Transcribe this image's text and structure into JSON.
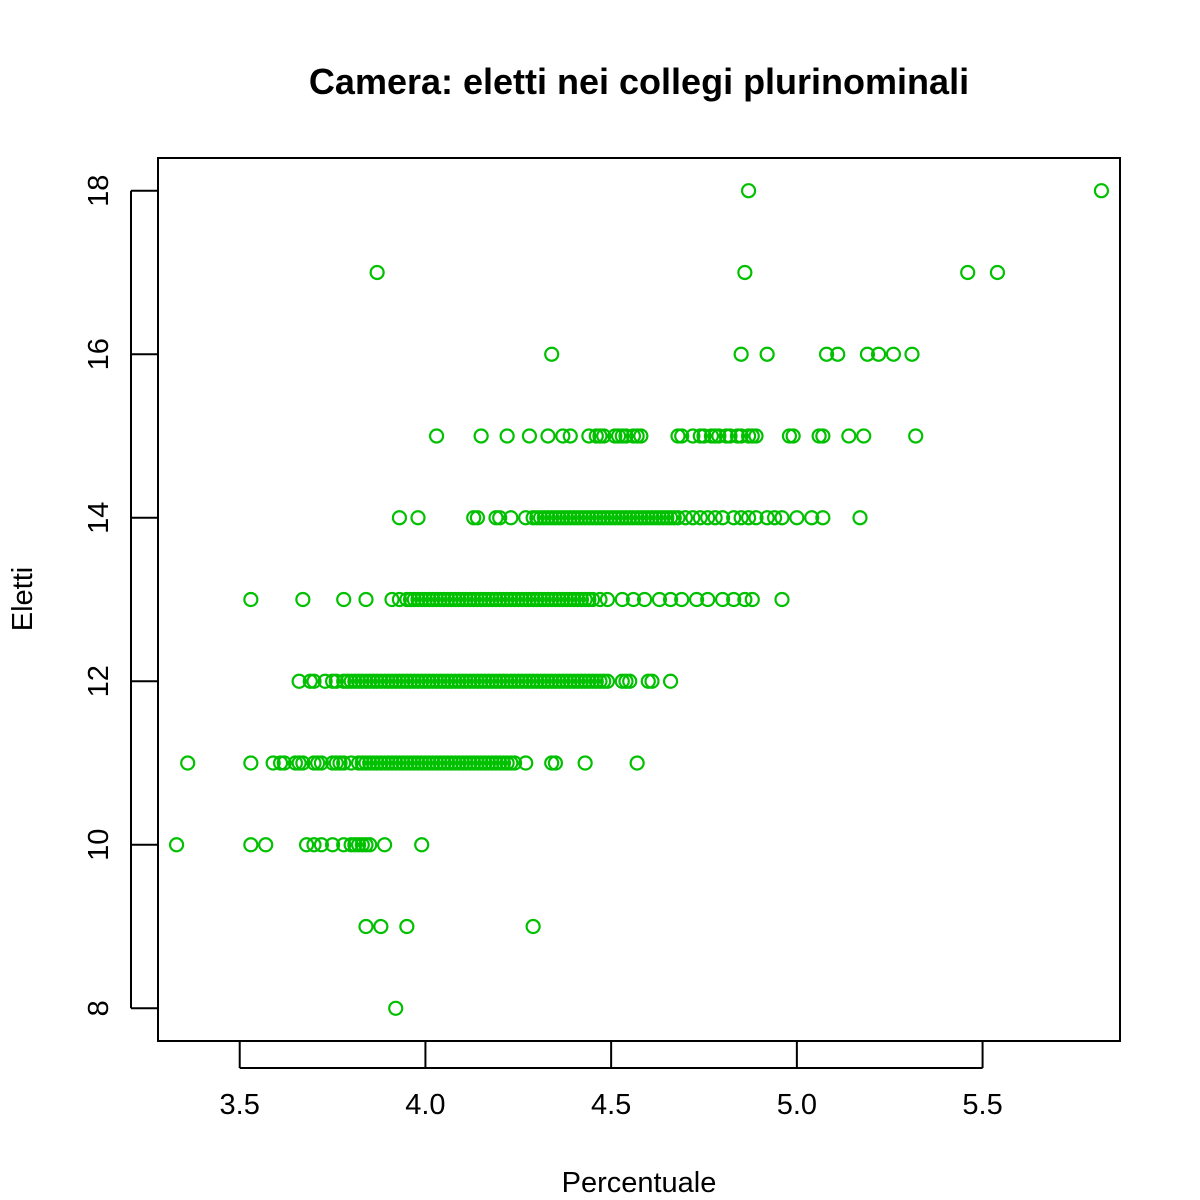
{
  "chart_data": {
    "type": "scatter",
    "title": "Camera: eletti nei collegi plurinominali",
    "xlabel": "Percentuale",
    "ylabel": "Eletti",
    "xlim": [
      3.28,
      5.87
    ],
    "ylim": [
      7.6,
      18.4
    ],
    "x_ticks": [
      3.5,
      4.0,
      4.5,
      5.0,
      5.5
    ],
    "x_tick_labels": [
      "3.5",
      "4.0",
      "4.5",
      "5.0",
      "5.5"
    ],
    "y_ticks": [
      8,
      10,
      12,
      14,
      16,
      18
    ],
    "y_tick_labels": [
      "8",
      "10",
      "12",
      "14",
      "16",
      "18"
    ],
    "marker": "open-circle",
    "color": "#00c000",
    "grid": false,
    "legend": "none",
    "points": [
      {
        "x": 3.92,
        "y": 8
      },
      {
        "x": 3.84,
        "y": 9
      },
      {
        "x": 3.88,
        "y": 9
      },
      {
        "x": 3.95,
        "y": 9
      },
      {
        "x": 4.29,
        "y": 9
      },
      {
        "x": 3.33,
        "y": 10
      },
      {
        "x": 3.53,
        "y": 10
      },
      {
        "x": 3.57,
        "y": 10
      },
      {
        "x": 3.68,
        "y": 10
      },
      {
        "x": 3.7,
        "y": 10
      },
      {
        "x": 3.72,
        "y": 10
      },
      {
        "x": 3.75,
        "y": 10
      },
      {
        "x": 3.78,
        "y": 10
      },
      {
        "x": 3.8,
        "y": 10
      },
      {
        "x": 3.81,
        "y": 10
      },
      {
        "x": 3.82,
        "y": 10
      },
      {
        "x": 3.83,
        "y": 10
      },
      {
        "x": 3.84,
        "y": 10
      },
      {
        "x": 3.85,
        "y": 10
      },
      {
        "x": 3.89,
        "y": 10
      },
      {
        "x": 3.99,
        "y": 10
      },
      {
        "x": 3.36,
        "y": 11
      },
      {
        "x": 3.53,
        "y": 11
      },
      {
        "x": 3.59,
        "y": 11
      },
      {
        "x": 3.61,
        "y": 11
      },
      {
        "x": 3.62,
        "y": 11
      },
      {
        "x": 3.65,
        "y": 11
      },
      {
        "x": 3.66,
        "y": 11
      },
      {
        "x": 3.67,
        "y": 11
      },
      {
        "x": 3.7,
        "y": 11
      },
      {
        "x": 3.71,
        "y": 11
      },
      {
        "x": 3.72,
        "y": 11
      },
      {
        "x": 3.75,
        "y": 11
      },
      {
        "x": 3.76,
        "y": 11
      },
      {
        "x": 3.77,
        "y": 11
      },
      {
        "x": 3.78,
        "y": 11
      },
      {
        "x": 3.8,
        "y": 11
      },
      {
        "x": 3.82,
        "y": 11
      },
      {
        "x": 3.83,
        "y": 11
      },
      {
        "x": 3.84,
        "y": 11
      },
      {
        "x": 3.85,
        "y": 11
      },
      {
        "x": 3.86,
        "y": 11
      },
      {
        "x": 3.87,
        "y": 11
      },
      {
        "x": 3.88,
        "y": 11
      },
      {
        "x": 3.89,
        "y": 11
      },
      {
        "x": 3.9,
        "y": 11
      },
      {
        "x": 3.91,
        "y": 11
      },
      {
        "x": 3.92,
        "y": 11
      },
      {
        "x": 3.93,
        "y": 11
      },
      {
        "x": 3.94,
        "y": 11
      },
      {
        "x": 3.95,
        "y": 11
      },
      {
        "x": 3.96,
        "y": 11
      },
      {
        "x": 3.97,
        "y": 11
      },
      {
        "x": 3.98,
        "y": 11
      },
      {
        "x": 3.99,
        "y": 11
      },
      {
        "x": 4.0,
        "y": 11
      },
      {
        "x": 4.01,
        "y": 11
      },
      {
        "x": 4.02,
        "y": 11
      },
      {
        "x": 4.03,
        "y": 11
      },
      {
        "x": 4.04,
        "y": 11
      },
      {
        "x": 4.05,
        "y": 11
      },
      {
        "x": 4.06,
        "y": 11
      },
      {
        "x": 4.07,
        "y": 11
      },
      {
        "x": 4.08,
        "y": 11
      },
      {
        "x": 4.09,
        "y": 11
      },
      {
        "x": 4.1,
        "y": 11
      },
      {
        "x": 4.11,
        "y": 11
      },
      {
        "x": 4.12,
        "y": 11
      },
      {
        "x": 4.13,
        "y": 11
      },
      {
        "x": 4.14,
        "y": 11
      },
      {
        "x": 4.15,
        "y": 11
      },
      {
        "x": 4.16,
        "y": 11
      },
      {
        "x": 4.17,
        "y": 11
      },
      {
        "x": 4.18,
        "y": 11
      },
      {
        "x": 4.19,
        "y": 11
      },
      {
        "x": 4.2,
        "y": 11
      },
      {
        "x": 4.21,
        "y": 11
      },
      {
        "x": 4.22,
        "y": 11
      },
      {
        "x": 4.23,
        "y": 11
      },
      {
        "x": 4.24,
        "y": 11
      },
      {
        "x": 4.27,
        "y": 11
      },
      {
        "x": 4.34,
        "y": 11
      },
      {
        "x": 4.35,
        "y": 11
      },
      {
        "x": 4.43,
        "y": 11
      },
      {
        "x": 4.57,
        "y": 11
      },
      {
        "x": 3.66,
        "y": 12
      },
      {
        "x": 3.69,
        "y": 12
      },
      {
        "x": 3.7,
        "y": 12
      },
      {
        "x": 3.73,
        "y": 12
      },
      {
        "x": 3.75,
        "y": 12
      },
      {
        "x": 3.76,
        "y": 12
      },
      {
        "x": 3.78,
        "y": 12
      },
      {
        "x": 3.79,
        "y": 12
      },
      {
        "x": 3.8,
        "y": 12
      },
      {
        "x": 3.81,
        "y": 12
      },
      {
        "x": 3.82,
        "y": 12
      },
      {
        "x": 3.83,
        "y": 12
      },
      {
        "x": 3.84,
        "y": 12
      },
      {
        "x": 3.85,
        "y": 12
      },
      {
        "x": 3.86,
        "y": 12
      },
      {
        "x": 3.87,
        "y": 12
      },
      {
        "x": 3.88,
        "y": 12
      },
      {
        "x": 3.89,
        "y": 12
      },
      {
        "x": 3.9,
        "y": 12
      },
      {
        "x": 3.91,
        "y": 12
      },
      {
        "x": 3.92,
        "y": 12
      },
      {
        "x": 3.93,
        "y": 12
      },
      {
        "x": 3.94,
        "y": 12
      },
      {
        "x": 3.95,
        "y": 12
      },
      {
        "x": 3.96,
        "y": 12
      },
      {
        "x": 3.97,
        "y": 12
      },
      {
        "x": 3.98,
        "y": 12
      },
      {
        "x": 3.99,
        "y": 12
      },
      {
        "x": 4.0,
        "y": 12
      },
      {
        "x": 4.01,
        "y": 12
      },
      {
        "x": 4.02,
        "y": 12
      },
      {
        "x": 4.03,
        "y": 12
      },
      {
        "x": 4.04,
        "y": 12
      },
      {
        "x": 4.05,
        "y": 12
      },
      {
        "x": 4.06,
        "y": 12
      },
      {
        "x": 4.07,
        "y": 12
      },
      {
        "x": 4.08,
        "y": 12
      },
      {
        "x": 4.09,
        "y": 12
      },
      {
        "x": 4.1,
        "y": 12
      },
      {
        "x": 4.11,
        "y": 12
      },
      {
        "x": 4.12,
        "y": 12
      },
      {
        "x": 4.13,
        "y": 12
      },
      {
        "x": 4.14,
        "y": 12
      },
      {
        "x": 4.15,
        "y": 12
      },
      {
        "x": 4.16,
        "y": 12
      },
      {
        "x": 4.17,
        "y": 12
      },
      {
        "x": 4.18,
        "y": 12
      },
      {
        "x": 4.19,
        "y": 12
      },
      {
        "x": 4.2,
        "y": 12
      },
      {
        "x": 4.21,
        "y": 12
      },
      {
        "x": 4.22,
        "y": 12
      },
      {
        "x": 4.23,
        "y": 12
      },
      {
        "x": 4.24,
        "y": 12
      },
      {
        "x": 4.25,
        "y": 12
      },
      {
        "x": 4.26,
        "y": 12
      },
      {
        "x": 4.27,
        "y": 12
      },
      {
        "x": 4.28,
        "y": 12
      },
      {
        "x": 4.29,
        "y": 12
      },
      {
        "x": 4.3,
        "y": 12
      },
      {
        "x": 4.31,
        "y": 12
      },
      {
        "x": 4.32,
        "y": 12
      },
      {
        "x": 4.33,
        "y": 12
      },
      {
        "x": 4.34,
        "y": 12
      },
      {
        "x": 4.35,
        "y": 12
      },
      {
        "x": 4.36,
        "y": 12
      },
      {
        "x": 4.37,
        "y": 12
      },
      {
        "x": 4.38,
        "y": 12
      },
      {
        "x": 4.39,
        "y": 12
      },
      {
        "x": 4.4,
        "y": 12
      },
      {
        "x": 4.41,
        "y": 12
      },
      {
        "x": 4.42,
        "y": 12
      },
      {
        "x": 4.43,
        "y": 12
      },
      {
        "x": 4.44,
        "y": 12
      },
      {
        "x": 4.45,
        "y": 12
      },
      {
        "x": 4.46,
        "y": 12
      },
      {
        "x": 4.47,
        "y": 12
      },
      {
        "x": 4.48,
        "y": 12
      },
      {
        "x": 4.49,
        "y": 12
      },
      {
        "x": 4.53,
        "y": 12
      },
      {
        "x": 4.54,
        "y": 12
      },
      {
        "x": 4.55,
        "y": 12
      },
      {
        "x": 4.6,
        "y": 12
      },
      {
        "x": 4.61,
        "y": 12
      },
      {
        "x": 4.66,
        "y": 12
      },
      {
        "x": 3.53,
        "y": 13
      },
      {
        "x": 3.67,
        "y": 13
      },
      {
        "x": 3.78,
        "y": 13
      },
      {
        "x": 3.84,
        "y": 13
      },
      {
        "x": 3.91,
        "y": 13
      },
      {
        "x": 3.93,
        "y": 13
      },
      {
        "x": 3.95,
        "y": 13
      },
      {
        "x": 3.96,
        "y": 13
      },
      {
        "x": 3.97,
        "y": 13
      },
      {
        "x": 3.98,
        "y": 13
      },
      {
        "x": 3.99,
        "y": 13
      },
      {
        "x": 4.0,
        "y": 13
      },
      {
        "x": 4.01,
        "y": 13
      },
      {
        "x": 4.02,
        "y": 13
      },
      {
        "x": 4.03,
        "y": 13
      },
      {
        "x": 4.04,
        "y": 13
      },
      {
        "x": 4.05,
        "y": 13
      },
      {
        "x": 4.06,
        "y": 13
      },
      {
        "x": 4.07,
        "y": 13
      },
      {
        "x": 4.08,
        "y": 13
      },
      {
        "x": 4.09,
        "y": 13
      },
      {
        "x": 4.1,
        "y": 13
      },
      {
        "x": 4.11,
        "y": 13
      },
      {
        "x": 4.12,
        "y": 13
      },
      {
        "x": 4.13,
        "y": 13
      },
      {
        "x": 4.14,
        "y": 13
      },
      {
        "x": 4.15,
        "y": 13
      },
      {
        "x": 4.16,
        "y": 13
      },
      {
        "x": 4.17,
        "y": 13
      },
      {
        "x": 4.18,
        "y": 13
      },
      {
        "x": 4.19,
        "y": 13
      },
      {
        "x": 4.2,
        "y": 13
      },
      {
        "x": 4.21,
        "y": 13
      },
      {
        "x": 4.22,
        "y": 13
      },
      {
        "x": 4.23,
        "y": 13
      },
      {
        "x": 4.24,
        "y": 13
      },
      {
        "x": 4.25,
        "y": 13
      },
      {
        "x": 4.26,
        "y": 13
      },
      {
        "x": 4.27,
        "y": 13
      },
      {
        "x": 4.28,
        "y": 13
      },
      {
        "x": 4.29,
        "y": 13
      },
      {
        "x": 4.3,
        "y": 13
      },
      {
        "x": 4.31,
        "y": 13
      },
      {
        "x": 4.32,
        "y": 13
      },
      {
        "x": 4.33,
        "y": 13
      },
      {
        "x": 4.34,
        "y": 13
      },
      {
        "x": 4.35,
        "y": 13
      },
      {
        "x": 4.36,
        "y": 13
      },
      {
        "x": 4.37,
        "y": 13
      },
      {
        "x": 4.38,
        "y": 13
      },
      {
        "x": 4.39,
        "y": 13
      },
      {
        "x": 4.4,
        "y": 13
      },
      {
        "x": 4.41,
        "y": 13
      },
      {
        "x": 4.42,
        "y": 13
      },
      {
        "x": 4.43,
        "y": 13
      },
      {
        "x": 4.44,
        "y": 13
      },
      {
        "x": 4.45,
        "y": 13
      },
      {
        "x": 4.47,
        "y": 13
      },
      {
        "x": 4.49,
        "y": 13
      },
      {
        "x": 4.53,
        "y": 13
      },
      {
        "x": 4.56,
        "y": 13
      },
      {
        "x": 4.59,
        "y": 13
      },
      {
        "x": 4.63,
        "y": 13
      },
      {
        "x": 4.66,
        "y": 13
      },
      {
        "x": 4.69,
        "y": 13
      },
      {
        "x": 4.73,
        "y": 13
      },
      {
        "x": 4.76,
        "y": 13
      },
      {
        "x": 4.8,
        "y": 13
      },
      {
        "x": 4.83,
        "y": 13
      },
      {
        "x": 4.86,
        "y": 13
      },
      {
        "x": 4.88,
        "y": 13
      },
      {
        "x": 4.96,
        "y": 13
      },
      {
        "x": 3.93,
        "y": 14
      },
      {
        "x": 3.98,
        "y": 14
      },
      {
        "x": 4.13,
        "y": 14
      },
      {
        "x": 4.14,
        "y": 14
      },
      {
        "x": 4.19,
        "y": 14
      },
      {
        "x": 4.2,
        "y": 14
      },
      {
        "x": 4.23,
        "y": 14
      },
      {
        "x": 4.27,
        "y": 14
      },
      {
        "x": 4.29,
        "y": 14
      },
      {
        "x": 4.3,
        "y": 14
      },
      {
        "x": 4.31,
        "y": 14
      },
      {
        "x": 4.32,
        "y": 14
      },
      {
        "x": 4.33,
        "y": 14
      },
      {
        "x": 4.34,
        "y": 14
      },
      {
        "x": 4.35,
        "y": 14
      },
      {
        "x": 4.36,
        "y": 14
      },
      {
        "x": 4.37,
        "y": 14
      },
      {
        "x": 4.38,
        "y": 14
      },
      {
        "x": 4.39,
        "y": 14
      },
      {
        "x": 4.4,
        "y": 14
      },
      {
        "x": 4.41,
        "y": 14
      },
      {
        "x": 4.42,
        "y": 14
      },
      {
        "x": 4.43,
        "y": 14
      },
      {
        "x": 4.44,
        "y": 14
      },
      {
        "x": 4.45,
        "y": 14
      },
      {
        "x": 4.46,
        "y": 14
      },
      {
        "x": 4.47,
        "y": 14
      },
      {
        "x": 4.48,
        "y": 14
      },
      {
        "x": 4.49,
        "y": 14
      },
      {
        "x": 4.5,
        "y": 14
      },
      {
        "x": 4.51,
        "y": 14
      },
      {
        "x": 4.52,
        "y": 14
      },
      {
        "x": 4.53,
        "y": 14
      },
      {
        "x": 4.54,
        "y": 14
      },
      {
        "x": 4.55,
        "y": 14
      },
      {
        "x": 4.56,
        "y": 14
      },
      {
        "x": 4.57,
        "y": 14
      },
      {
        "x": 4.58,
        "y": 14
      },
      {
        "x": 4.59,
        "y": 14
      },
      {
        "x": 4.6,
        "y": 14
      },
      {
        "x": 4.61,
        "y": 14
      },
      {
        "x": 4.62,
        "y": 14
      },
      {
        "x": 4.63,
        "y": 14
      },
      {
        "x": 4.64,
        "y": 14
      },
      {
        "x": 4.65,
        "y": 14
      },
      {
        "x": 4.66,
        "y": 14
      },
      {
        "x": 4.67,
        "y": 14
      },
      {
        "x": 4.68,
        "y": 14
      },
      {
        "x": 4.7,
        "y": 14
      },
      {
        "x": 4.72,
        "y": 14
      },
      {
        "x": 4.74,
        "y": 14
      },
      {
        "x": 4.76,
        "y": 14
      },
      {
        "x": 4.78,
        "y": 14
      },
      {
        "x": 4.8,
        "y": 14
      },
      {
        "x": 4.83,
        "y": 14
      },
      {
        "x": 4.85,
        "y": 14
      },
      {
        "x": 4.87,
        "y": 14
      },
      {
        "x": 4.89,
        "y": 14
      },
      {
        "x": 4.92,
        "y": 14
      },
      {
        "x": 4.94,
        "y": 14
      },
      {
        "x": 4.96,
        "y": 14
      },
      {
        "x": 5.0,
        "y": 14
      },
      {
        "x": 5.04,
        "y": 14
      },
      {
        "x": 5.07,
        "y": 14
      },
      {
        "x": 5.17,
        "y": 14
      },
      {
        "x": 4.03,
        "y": 15
      },
      {
        "x": 4.15,
        "y": 15
      },
      {
        "x": 4.22,
        "y": 15
      },
      {
        "x": 4.28,
        "y": 15
      },
      {
        "x": 4.33,
        "y": 15
      },
      {
        "x": 4.37,
        "y": 15
      },
      {
        "x": 4.39,
        "y": 15
      },
      {
        "x": 4.44,
        "y": 15
      },
      {
        "x": 4.46,
        "y": 15
      },
      {
        "x": 4.47,
        "y": 15
      },
      {
        "x": 4.48,
        "y": 15
      },
      {
        "x": 4.51,
        "y": 15
      },
      {
        "x": 4.52,
        "y": 15
      },
      {
        "x": 4.53,
        "y": 15
      },
      {
        "x": 4.54,
        "y": 15
      },
      {
        "x": 4.56,
        "y": 15
      },
      {
        "x": 4.57,
        "y": 15
      },
      {
        "x": 4.58,
        "y": 15
      },
      {
        "x": 4.68,
        "y": 15
      },
      {
        "x": 4.69,
        "y": 15
      },
      {
        "x": 4.72,
        "y": 15
      },
      {
        "x": 4.74,
        "y": 15
      },
      {
        "x": 4.75,
        "y": 15
      },
      {
        "x": 4.77,
        "y": 15
      },
      {
        "x": 4.78,
        "y": 15
      },
      {
        "x": 4.79,
        "y": 15
      },
      {
        "x": 4.81,
        "y": 15
      },
      {
        "x": 4.82,
        "y": 15
      },
      {
        "x": 4.84,
        "y": 15
      },
      {
        "x": 4.85,
        "y": 15
      },
      {
        "x": 4.87,
        "y": 15
      },
      {
        "x": 4.88,
        "y": 15
      },
      {
        "x": 4.89,
        "y": 15
      },
      {
        "x": 4.98,
        "y": 15
      },
      {
        "x": 4.99,
        "y": 15
      },
      {
        "x": 5.06,
        "y": 15
      },
      {
        "x": 5.07,
        "y": 15
      },
      {
        "x": 5.14,
        "y": 15
      },
      {
        "x": 5.18,
        "y": 15
      },
      {
        "x": 5.32,
        "y": 15
      },
      {
        "x": 4.34,
        "y": 16
      },
      {
        "x": 4.85,
        "y": 16
      },
      {
        "x": 4.92,
        "y": 16
      },
      {
        "x": 5.08,
        "y": 16
      },
      {
        "x": 5.11,
        "y": 16
      },
      {
        "x": 5.19,
        "y": 16
      },
      {
        "x": 5.22,
        "y": 16
      },
      {
        "x": 5.26,
        "y": 16
      },
      {
        "x": 5.31,
        "y": 16
      },
      {
        "x": 3.87,
        "y": 17
      },
      {
        "x": 4.86,
        "y": 17
      },
      {
        "x": 5.46,
        "y": 17
      },
      {
        "x": 5.54,
        "y": 17
      },
      {
        "x": 4.87,
        "y": 18
      },
      {
        "x": 5.82,
        "y": 18
      }
    ]
  }
}
